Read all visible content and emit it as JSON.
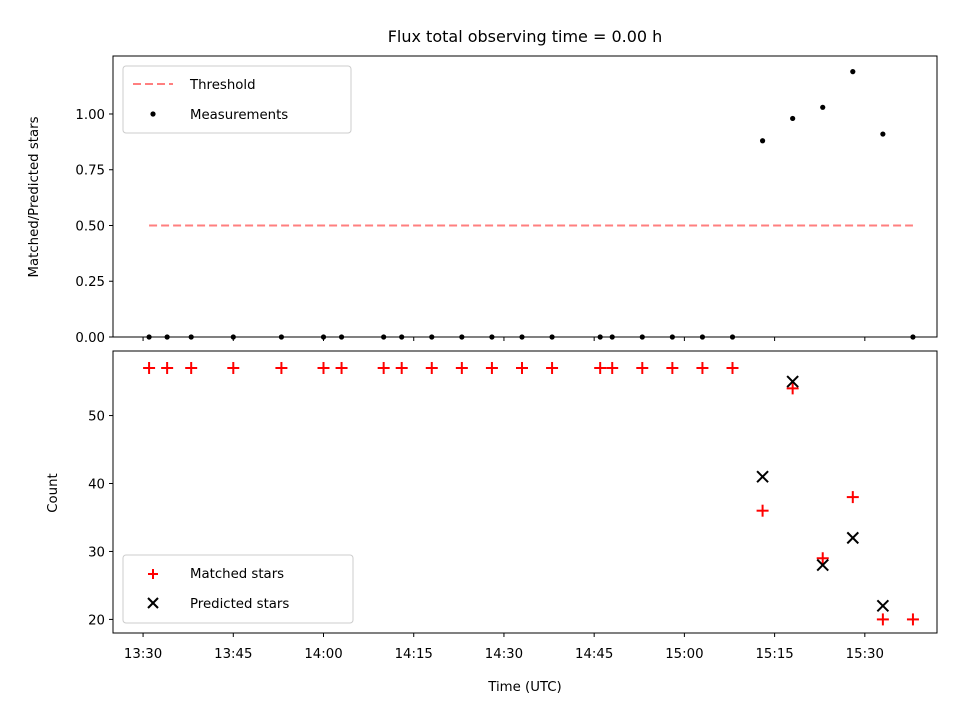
{
  "chart_data": [
    {
      "type": "scatter",
      "title": "Flux total observing time = 0.00 h",
      "xlabel": "",
      "ylabel": "Matched/Predicted stars",
      "ylim": [
        0,
        1.26
      ],
      "yticks": [
        "0.00",
        "0.25",
        "0.50",
        "0.75",
        "1.00"
      ],
      "xlim": [
        "13:25",
        "15:42"
      ],
      "legend_position": "upper-left",
      "threshold": {
        "name": "Threshold",
        "value": 0.5,
        "x_start": "13:31",
        "x_end": "15:38",
        "color": "#ff7f7f",
        "style": "dashed"
      },
      "series": [
        {
          "name": "Measurements",
          "color": "#000000",
          "points": [
            {
              "x": "13:31",
              "y": 0
            },
            {
              "x": "13:34",
              "y": 0
            },
            {
              "x": "13:38",
              "y": 0
            },
            {
              "x": "13:45",
              "y": 0
            },
            {
              "x": "13:53",
              "y": 0
            },
            {
              "x": "14:00",
              "y": 0
            },
            {
              "x": "14:03",
              "y": 0
            },
            {
              "x": "14:10",
              "y": 0
            },
            {
              "x": "14:13",
              "y": 0
            },
            {
              "x": "14:18",
              "y": 0
            },
            {
              "x": "14:23",
              "y": 0
            },
            {
              "x": "14:28",
              "y": 0
            },
            {
              "x": "14:33",
              "y": 0
            },
            {
              "x": "14:38",
              "y": 0
            },
            {
              "x": "14:46",
              "y": 0
            },
            {
              "x": "14:48",
              "y": 0
            },
            {
              "x": "14:53",
              "y": 0
            },
            {
              "x": "14:58",
              "y": 0
            },
            {
              "x": "15:03",
              "y": 0
            },
            {
              "x": "15:08",
              "y": 0
            },
            {
              "x": "15:13",
              "y": 0.88
            },
            {
              "x": "15:18",
              "y": 0.98
            },
            {
              "x": "15:23",
              "y": 1.03
            },
            {
              "x": "15:28",
              "y": 1.19
            },
            {
              "x": "15:33",
              "y": 0.91
            },
            {
              "x": "15:38",
              "y": 0
            }
          ]
        }
      ]
    },
    {
      "type": "scatter",
      "title": "",
      "xlabel": "Time (UTC)",
      "ylabel": "Count",
      "ylim": [
        18,
        59.5
      ],
      "yticks": [
        "20",
        "30",
        "40",
        "50"
      ],
      "xlim": [
        "13:25",
        "15:42"
      ],
      "xticks": [
        "13:30",
        "13:45",
        "14:00",
        "14:15",
        "14:30",
        "14:45",
        "15:00",
        "15:15",
        "15:30"
      ],
      "legend_position": "lower-left",
      "series": [
        {
          "name": "Matched stars",
          "marker": "plus",
          "color": "#ff0000",
          "points": [
            {
              "x": "13:31",
              "y": 57
            },
            {
              "x": "13:34",
              "y": 57
            },
            {
              "x": "13:38",
              "y": 57
            },
            {
              "x": "13:45",
              "y": 57
            },
            {
              "x": "13:53",
              "y": 57
            },
            {
              "x": "14:00",
              "y": 57
            },
            {
              "x": "14:03",
              "y": 57
            },
            {
              "x": "14:10",
              "y": 57
            },
            {
              "x": "14:13",
              "y": 57
            },
            {
              "x": "14:18",
              "y": 57
            },
            {
              "x": "14:23",
              "y": 57
            },
            {
              "x": "14:28",
              "y": 57
            },
            {
              "x": "14:33",
              "y": 57
            },
            {
              "x": "14:38",
              "y": 57
            },
            {
              "x": "14:46",
              "y": 57
            },
            {
              "x": "14:48",
              "y": 57
            },
            {
              "x": "14:53",
              "y": 57
            },
            {
              "x": "14:58",
              "y": 57
            },
            {
              "x": "15:03",
              "y": 57
            },
            {
              "x": "15:08",
              "y": 57
            },
            {
              "x": "15:13",
              "y": 36
            },
            {
              "x": "15:18",
              "y": 54
            },
            {
              "x": "15:23",
              "y": 29
            },
            {
              "x": "15:28",
              "y": 38
            },
            {
              "x": "15:33",
              "y": 20
            },
            {
              "x": "15:38",
              "y": 20
            }
          ]
        },
        {
          "name": "Predicted stars",
          "marker": "x",
          "color": "#000000",
          "points": [
            {
              "x": "15:13",
              "y": 41
            },
            {
              "x": "15:18",
              "y": 55
            },
            {
              "x": "15:23",
              "y": 28
            },
            {
              "x": "15:28",
              "y": 32
            },
            {
              "x": "15:33",
              "y": 22
            }
          ]
        }
      ]
    }
  ]
}
